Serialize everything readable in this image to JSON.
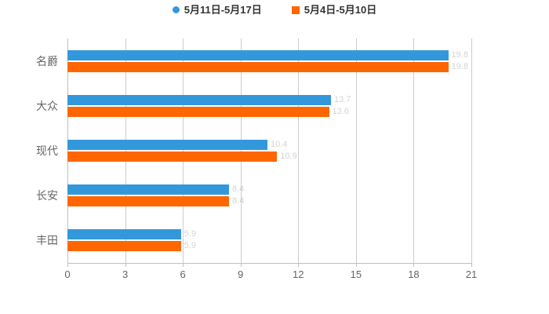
{
  "legend": {
    "items": [
      {
        "label": "5月11日-5月17日",
        "marker": "circle",
        "color": "#3398DB"
      },
      {
        "label": "5月4日-5月10日",
        "marker": "square",
        "color": "#FF6600"
      }
    ]
  },
  "chart_data": {
    "type": "bar",
    "orientation": "horizontal",
    "title": "",
    "categories": [
      "名爵",
      "大众",
      "现代",
      "长安",
      "丰田"
    ],
    "series": [
      {
        "name": "5月11日-5月17日",
        "color": "#3398DB",
        "values": [
          19.8,
          13.7,
          10.4,
          8.4,
          5.9
        ]
      },
      {
        "name": "5月4日-5月10日",
        "color": "#FF6600",
        "values": [
          19.8,
          13.6,
          10.9,
          8.4,
          5.9
        ]
      }
    ],
    "xlim": [
      0,
      21
    ],
    "xticks": [
      0,
      3,
      6,
      9,
      12,
      15,
      18,
      21
    ],
    "grid": true,
    "legend_position": "top",
    "value_label_style": "faint"
  },
  "colors": {
    "background": "#ffffff",
    "grid": "#cccccc",
    "axis": "#c0c0c0",
    "tick_label": "#666666",
    "category_label": "#666666",
    "legend_text": "#333333"
  }
}
